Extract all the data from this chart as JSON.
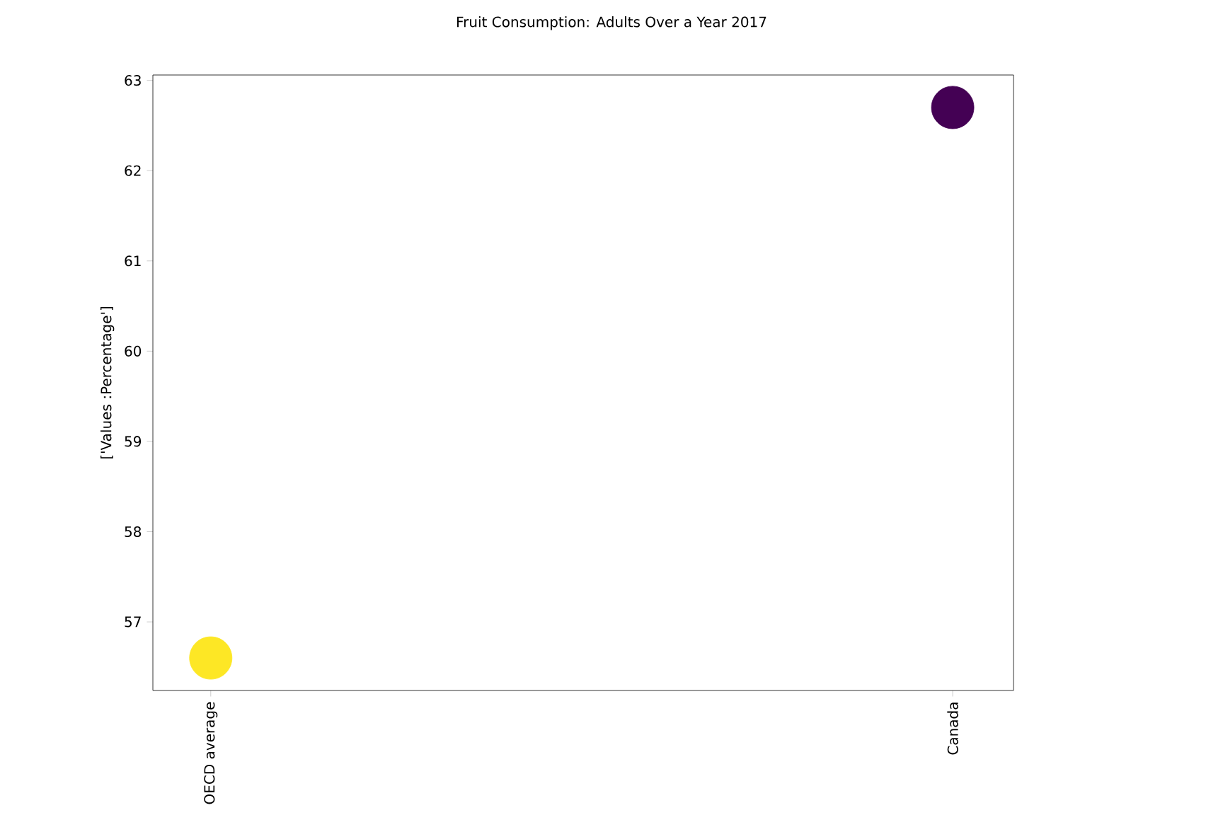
{
  "chart_data": {
    "type": "scatter",
    "title": "Fruit Consumption: Adults Over a Year 2017",
    "ylabel": "['Values :Percentage']",
    "categories": [
      "OECD average",
      "Canada"
    ],
    "values": [
      56.6,
      62.7
    ],
    "colors": [
      "#fde725",
      "#440154"
    ],
    "marker": "circle",
    "ylim": [
      56.24,
      63.06
    ],
    "yticks": [
      57,
      58,
      59,
      60,
      61,
      62,
      63
    ],
    "grid": false
  }
}
